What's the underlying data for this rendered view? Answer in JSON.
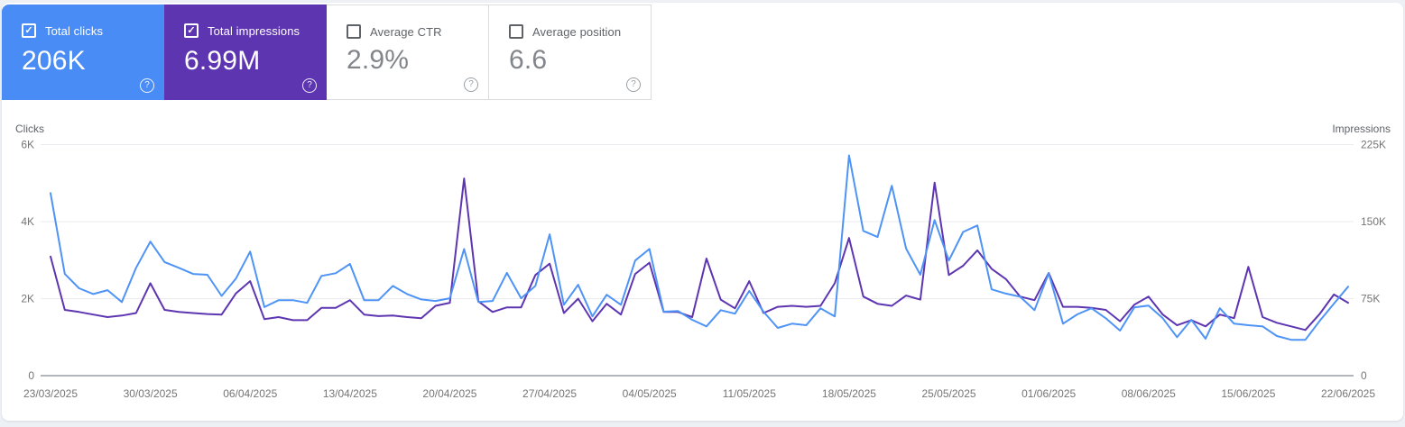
{
  "cards": [
    {
      "label": "Total clicks",
      "value": "206K",
      "checked": true,
      "color": "#4a8cf5"
    },
    {
      "label": "Total impressions",
      "value": "6.99M",
      "checked": true,
      "color": "#5e35b1"
    },
    {
      "label": "Average CTR",
      "value": "2.9%",
      "checked": false
    },
    {
      "label": "Average position",
      "value": "6.6",
      "checked": false
    }
  ],
  "help_icon_glyph": "?",
  "checkbox_check_glyph": "✓",
  "chart_data": {
    "type": "line",
    "grid": true,
    "legend_position": "none",
    "x_tick_labels": [
      "23/03/2025",
      "30/03/2025",
      "06/04/2025",
      "13/04/2025",
      "20/04/2025",
      "27/04/2025",
      "04/05/2025",
      "11/05/2025",
      "18/05/2025",
      "25/05/2025",
      "01/06/2025",
      "08/06/2025",
      "15/06/2025",
      "22/06/2025"
    ],
    "left_axis": {
      "label": "Clicks",
      "ticks": [
        "0",
        "2K",
        "4K",
        "6K"
      ],
      "range": [
        0,
        6000
      ]
    },
    "right_axis": {
      "label": "Impressions",
      "ticks": [
        "0",
        "75K",
        "150K",
        "225K"
      ],
      "range": [
        0,
        225000
      ]
    },
    "series": [
      {
        "name": "Total clicks",
        "axis": "left",
        "color": "#4e93f6",
        "values": [
          4740,
          2640,
          2270,
          2120,
          2220,
          1910,
          2800,
          3480,
          2950,
          2800,
          2640,
          2620,
          2070,
          2520,
          3220,
          1780,
          1960,
          1960,
          1890,
          2590,
          2660,
          2900,
          1960,
          1960,
          2330,
          2120,
          1980,
          1940,
          2010,
          3290,
          1910,
          1940,
          2670,
          2010,
          2330,
          3670,
          1840,
          2360,
          1540,
          2100,
          1840,
          2990,
          3290,
          1660,
          1680,
          1450,
          1280,
          1700,
          1610,
          2200,
          1660,
          1240,
          1350,
          1310,
          1750,
          1540,
          5720,
          3760,
          3600,
          4930,
          3300,
          2620,
          4040,
          2990,
          3730,
          3900,
          2240,
          2130,
          2050,
          1700,
          2660,
          1350,
          1590,
          1750,
          1490,
          1170,
          1770,
          1820,
          1490,
          1000,
          1450,
          960,
          1750,
          1350,
          1310,
          1280,
          1030,
          930,
          930,
          1420,
          1870,
          2310
        ]
      },
      {
        "name": "Total impressions",
        "axis": "right",
        "color": "#5e35b1",
        "values": [
          116000,
          64000,
          62000,
          59500,
          57000,
          58500,
          61000,
          90000,
          64000,
          62000,
          61000,
          60000,
          59500,
          80000,
          92000,
          55000,
          57000,
          54000,
          54000,
          66000,
          66000,
          73500,
          59500,
          58000,
          58500,
          57000,
          56000,
          68000,
          71000,
          192000,
          72500,
          62000,
          66500,
          66500,
          98000,
          109000,
          61000,
          75000,
          53000,
          70000,
          59500,
          99000,
          110000,
          62000,
          62000,
          57000,
          114000,
          74000,
          65500,
          92000,
          61000,
          67000,
          68000,
          67000,
          68000,
          90000,
          134000,
          77000,
          70000,
          68000,
          78000,
          74000,
          188000,
          98000,
          107000,
          122000,
          104000,
          94000,
          77000,
          73500,
          100000,
          67000,
          67000,
          66000,
          64000,
          53000,
          69000,
          77000,
          59500,
          49000,
          54000,
          48000,
          59500,
          56000,
          106000,
          57000,
          51500,
          48000,
          44500,
          60000,
          79000,
          71000
        ]
      }
    ]
  }
}
